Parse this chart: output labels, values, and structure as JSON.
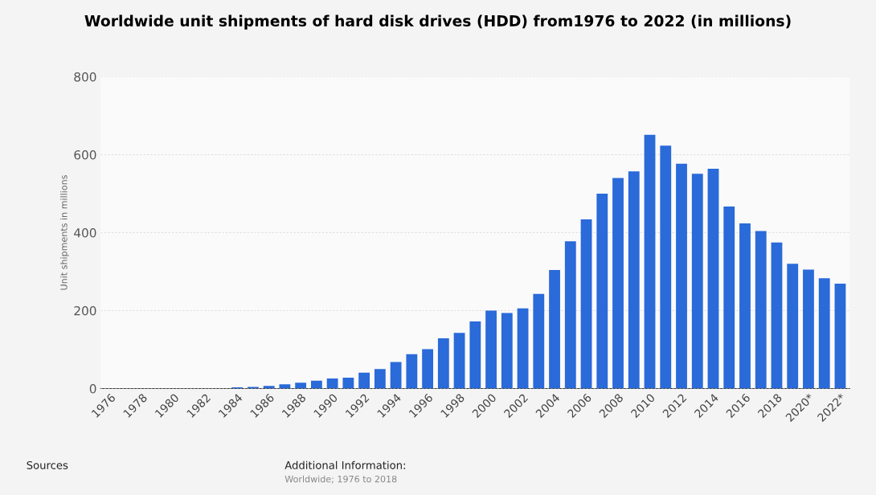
{
  "chart_data": {
    "type": "bar",
    "title": "Worldwide unit shipments of hard disk drives (HDD) from1976 to 2022 (in millions)",
    "ylabel": "Unit shipments in millions",
    "categories": [
      "1976",
      null,
      "1978",
      null,
      "1980",
      null,
      "1982",
      null,
      "1984",
      null,
      "1986",
      null,
      "1988",
      null,
      "1990",
      null,
      "1992",
      null,
      "1994",
      null,
      "1996",
      null,
      "1998",
      null,
      "2000",
      null,
      "2002",
      null,
      "2004",
      null,
      "2006",
      null,
      "2008",
      null,
      "2010",
      null,
      "2012",
      null,
      "2014",
      null,
      "2016",
      null,
      "2018",
      null,
      "2020*",
      null,
      "2022*"
    ],
    "values": [
      0,
      0,
      0,
      0,
      0,
      0,
      0,
      0,
      3,
      4,
      7,
      11,
      15,
      20,
      26,
      28,
      41,
      50,
      68,
      88,
      101,
      129,
      143,
      172,
      200,
      194,
      206,
      243,
      304,
      378,
      434,
      500,
      540,
      557,
      651,
      623,
      577,
      551,
      564,
      467,
      424,
      404,
      375,
      320,
      305,
      283,
      269
    ],
    "color": "#2a6ad9",
    "ylim": [
      0,
      800
    ],
    "yticks": [
      0,
      200,
      400,
      600,
      800
    ],
    "grid": "y",
    "annotations": [
      "Sources",
      "Additional Information:",
      "Worldwide; 1976 to 2018"
    ]
  }
}
